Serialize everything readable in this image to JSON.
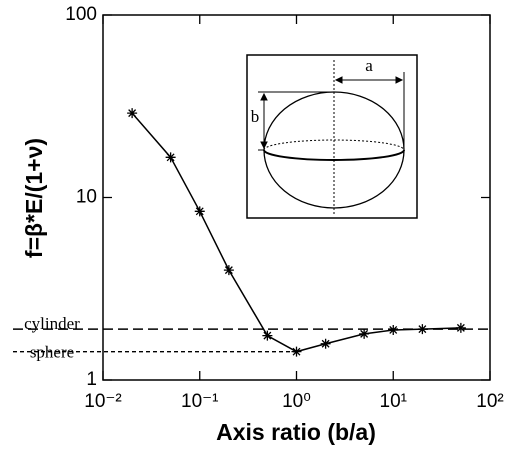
{
  "chart_data": {
    "type": "line",
    "xlabel": "Axis ratio (b/a)",
    "ylabel": "f=β*E/(1+ν)",
    "x": [
      0.02,
      0.05,
      0.1,
      0.2,
      0.5,
      1,
      2,
      5,
      10,
      20,
      50
    ],
    "series": [
      {
        "color": "#000000",
        "values": [
          29,
          16.6,
          8.4,
          4.0,
          1.75,
          1.43,
          1.58,
          1.79,
          1.88,
          1.9,
          1.93
        ]
      }
    ],
    "xlim": [
      0.01,
      100
    ],
    "ylim": [
      1,
      100
    ],
    "xscale": "log",
    "yscale": "log",
    "xticks": [
      {
        "value": 0.01,
        "label": "10⁻²"
      },
      {
        "value": 0.1,
        "label": "10⁻¹"
      },
      {
        "value": 1,
        "label": "10⁰"
      },
      {
        "value": 10,
        "label": "10¹"
      },
      {
        "value": 100,
        "label": "10²"
      }
    ],
    "yticks": [
      1,
      10,
      100
    ],
    "reference_lines": [
      {
        "name": "cylinder",
        "value": 1.9,
        "style": "long-dash"
      },
      {
        "name": "sphere",
        "value": 1.43,
        "x_end": 1,
        "style": "short-dash"
      }
    ],
    "inset_labels": [
      "a",
      "b"
    ]
  }
}
